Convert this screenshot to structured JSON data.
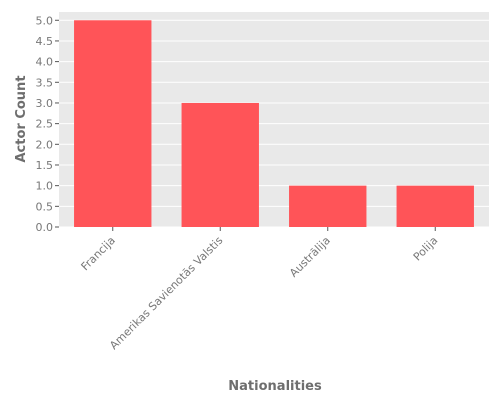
{
  "chart_data": {
    "type": "bar",
    "title": "",
    "xlabel": "Nationalities",
    "ylabel": "Actor Count",
    "categories": [
      "Francija",
      "Amerikas Savienotās Valstis",
      "Austrālija",
      "Polija"
    ],
    "values": [
      5,
      3,
      1,
      1
    ],
    "ylim": [
      0,
      5.2
    ],
    "yticks": [
      "0.0",
      "0.5",
      "1.0",
      "1.5",
      "2.0",
      "2.5",
      "3.0",
      "3.5",
      "4.0",
      "4.5",
      "5.0"
    ],
    "grid": true,
    "legend": "none",
    "colors": {
      "bar": "#ff5458",
      "plot_background": "#e9e9e9",
      "grid": "#ffffff"
    }
  }
}
